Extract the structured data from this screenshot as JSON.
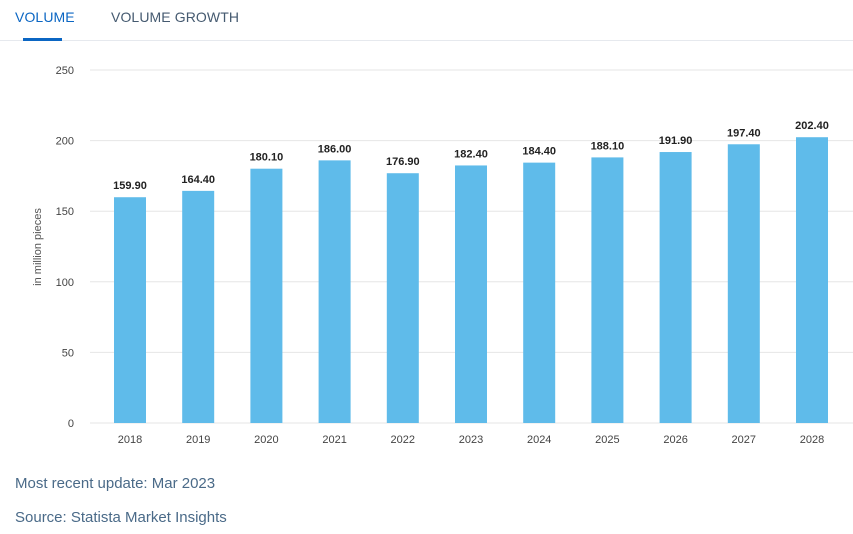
{
  "tabs": [
    {
      "label": "VOLUME",
      "active": true
    },
    {
      "label": "VOLUME GROWTH",
      "active": false
    }
  ],
  "colors": {
    "bar": "#5fbbea",
    "active_tab": "#0b66c3",
    "grid": "#e6e6e6",
    "footer_text": "#4a6a88"
  },
  "chart_data": {
    "type": "bar",
    "categories": [
      "2018",
      "2019",
      "2020",
      "2021",
      "2022",
      "2023",
      "2024",
      "2025",
      "2026",
      "2027",
      "2028"
    ],
    "values": [
      159.9,
      164.4,
      180.1,
      186.0,
      176.9,
      182.4,
      184.4,
      188.1,
      191.9,
      197.4,
      202.4
    ],
    "value_labels": [
      "159.90",
      "164.40",
      "180.10",
      "186.00",
      "176.90",
      "182.40",
      "184.40",
      "188.10",
      "191.90",
      "197.40",
      "202.40"
    ],
    "ylabel": "in million pieces",
    "ylim": [
      0,
      250
    ],
    "yticks": [
      0,
      50,
      100,
      150,
      200,
      250
    ],
    "grid": true,
    "legend": "none"
  },
  "footer": {
    "update": "Most recent update: Mar 2023",
    "source": "Source: Statista Market Insights"
  }
}
